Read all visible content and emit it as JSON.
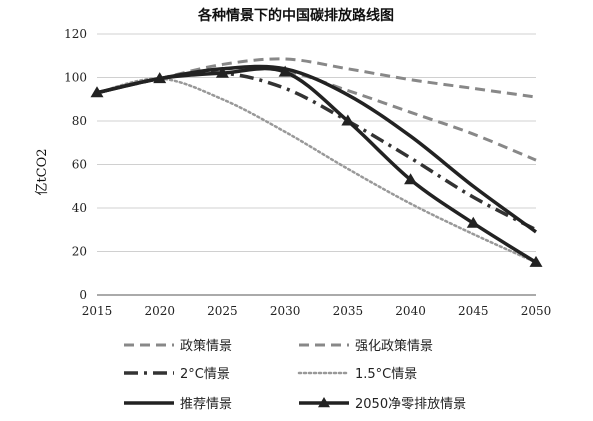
{
  "chart_data": {
    "type": "line",
    "title": "各种情景下的中国碳排放路线图",
    "xlabel": "",
    "ylabel": "亿tCO2",
    "x": [
      2015,
      2020,
      2025,
      2030,
      2035,
      2040,
      2045,
      2050
    ],
    "xlim": [
      2015,
      2050
    ],
    "ylim": [
      0,
      120
    ],
    "yticks": [
      0,
      20,
      40,
      60,
      80,
      100,
      120
    ],
    "xticks": [
      2015,
      2020,
      2025,
      2030,
      2035,
      2040,
      2045,
      2050
    ],
    "grid": "horizontal",
    "legend_position": "bottom",
    "series": [
      {
        "name": "政策情景",
        "style": "dash",
        "color": "#888888",
        "values": [
          93,
          99.5,
          106,
          108.5,
          104,
          99,
          95,
          91
        ]
      },
      {
        "name": "强化政策情景",
        "style": "dash",
        "color": "#888888",
        "values": [
          93,
          99.5,
          104,
          103,
          94,
          84,
          74,
          62
        ]
      },
      {
        "name": "2°C情景",
        "style": "dashdot",
        "color": "#333333",
        "values": [
          93,
          99.5,
          102,
          95,
          80,
          63,
          45,
          30
        ]
      },
      {
        "name": "1.5°C情景",
        "style": "dot",
        "color": "#999999",
        "values": [
          93,
          99.5,
          90,
          75,
          58,
          42,
          28,
          15
        ]
      },
      {
        "name": "推荐情景",
        "style": "solid",
        "color": "#222222",
        "values": [
          93,
          99.5,
          104,
          104,
          92,
          73,
          50,
          29
        ]
      },
      {
        "name": "2050净零排放情景",
        "style": "solid-triangle",
        "color": "#222222",
        "values": [
          93,
          99.5,
          102,
          102.5,
          80,
          53,
          33,
          15
        ]
      }
    ]
  }
}
